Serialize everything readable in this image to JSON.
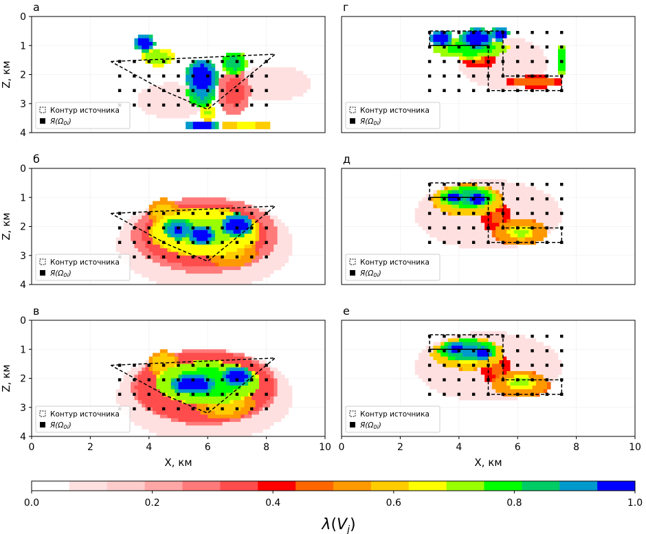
{
  "chart_data": {
    "type": "heatmap",
    "title": "",
    "layout": "3 rows x 2 columns of panels with shared horizontal colorbar",
    "colorbar": {
      "label": "λ(V_j)",
      "label_main": "λ",
      "label_paren_open": "(",
      "label_var": "V",
      "label_sub": "j",
      "label_paren_close": ")",
      "range": [
        0.0,
        1.0
      ],
      "ticks": [
        0.0,
        0.2,
        0.4,
        0.6,
        0.8,
        1.0
      ],
      "tick_labels": [
        "0.0",
        "0.2",
        "0.4",
        "0.6",
        "0.8",
        "1.0"
      ],
      "n_bins": 16,
      "colors": [
        "#ffffff",
        "#ffe0e0",
        "#ffcccc",
        "#ffa6a6",
        "#ff7a7a",
        "#ff4c4c",
        "#ff0000",
        "#ff6600",
        "#ff9900",
        "#ffcc00",
        "#ffff00",
        "#99ff00",
        "#00ff00",
        "#00cc66",
        "#0099cc",
        "#0000ff"
      ]
    },
    "axes": {
      "xlabel": "X, км",
      "ylabel": "Z, км",
      "xlim": [
        0,
        10
      ],
      "ylim": [
        4,
        0
      ],
      "xticks": [
        0,
        2,
        4,
        6,
        8,
        10
      ],
      "xtick_labels": [
        "0",
        "2",
        "4",
        "6",
        "8",
        "10"
      ],
      "yticks": [
        0,
        1,
        2,
        3,
        4
      ],
      "ytick_labels": [
        "0",
        "1",
        "2",
        "3",
        "4"
      ],
      "grid": true
    },
    "legend": {
      "placement": "lower-left",
      "entries": [
        {
          "label": "Контур источника",
          "marker": "dashed-square"
        },
        {
          "label_main": "Я",
          "label_open": "(",
          "label_omega": "Ω",
          "label_sub": "0i",
          "label_close": ")",
          "label": "Я(Ω0i)",
          "marker": "filled-square"
        }
      ]
    },
    "panels": [
      {
        "id": "a",
        "label": "а",
        "row": 0,
        "col": 0,
        "source_contour": [
          [
            2.7,
            1.55
          ],
          [
            8.3,
            1.3
          ],
          [
            6.0,
            3.2
          ],
          [
            4.6,
            2.6
          ],
          [
            2.7,
            1.55
          ]
        ],
        "grid_points": {
          "x": [
            3.0,
            3.5,
            4.0,
            4.5,
            5.0,
            5.5,
            6.0,
            6.5,
            7.0,
            7.5,
            8.0
          ],
          "z": [
            1.55,
            2.05,
            2.55,
            3.05
          ]
        },
        "blobs": [
          {
            "x": 3.85,
            "z": 0.9,
            "rx": 0.35,
            "rz": 0.3,
            "v": 1.0
          },
          {
            "x": 4.3,
            "z": 1.4,
            "rx": 0.55,
            "rz": 0.3,
            "v": 0.75
          },
          {
            "x": 5.8,
            "z": 2.1,
            "rx": 0.55,
            "rz": 0.65,
            "v": 1.0
          },
          {
            "x": 5.8,
            "z": 2.6,
            "rx": 0.5,
            "rz": 0.5,
            "v": 0.9
          },
          {
            "x": 6.0,
            "z": 3.3,
            "rx": 0.3,
            "rz": 0.3,
            "v": 0.7
          },
          {
            "x": 5.8,
            "z": 3.75,
            "rx": 0.6,
            "rz": 0.18,
            "v": 1.0
          },
          {
            "x": 7.3,
            "z": 3.75,
            "rx": 0.9,
            "rz": 0.18,
            "v": 0.65
          },
          {
            "x": 6.9,
            "z": 1.6,
            "rx": 0.45,
            "rz": 0.4,
            "v": 0.85
          },
          {
            "x": 6.9,
            "z": 2.6,
            "rx": 0.55,
            "rz": 0.8,
            "v": 0.33
          },
          {
            "x": 8.2,
            "z": 2.3,
            "rx": 1.3,
            "rz": 0.6,
            "v": 0.12
          },
          {
            "x": 4.8,
            "z": 2.9,
            "rx": 1.2,
            "rz": 0.6,
            "v": 0.1
          }
        ]
      },
      {
        "id": "b",
        "label": "б",
        "row": 1,
        "col": 0,
        "source_contour": [
          [
            2.7,
            1.55
          ],
          [
            8.3,
            1.3
          ],
          [
            6.0,
            3.2
          ],
          [
            4.6,
            2.6
          ],
          [
            2.7,
            1.55
          ]
        ],
        "grid_points": {
          "x": [
            3.0,
            3.5,
            4.0,
            4.5,
            5.0,
            5.5,
            6.0,
            6.5,
            7.0,
            7.5,
            8.0
          ],
          "z": [
            1.55,
            2.05,
            2.55,
            3.05
          ]
        },
        "blobs": [
          {
            "x": 5.0,
            "z": 2.1,
            "rx": 0.55,
            "rz": 0.35,
            "v": 0.95
          },
          {
            "x": 5.8,
            "z": 2.3,
            "rx": 0.45,
            "rz": 0.35,
            "v": 1.0
          },
          {
            "x": 7.0,
            "z": 1.95,
            "rx": 0.55,
            "rz": 0.4,
            "v": 1.0
          },
          {
            "x": 5.9,
            "z": 2.2,
            "rx": 1.9,
            "rz": 0.85,
            "v": 0.72
          },
          {
            "x": 4.5,
            "z": 1.5,
            "rx": 0.5,
            "rz": 0.45,
            "v": 0.6
          },
          {
            "x": 6.8,
            "z": 2.9,
            "rx": 0.9,
            "rz": 0.5,
            "v": 0.58
          },
          {
            "x": 5.9,
            "z": 2.3,
            "rx": 2.5,
            "rz": 1.3,
            "v": 0.35
          },
          {
            "x": 5.9,
            "z": 2.6,
            "rx": 3.0,
            "rz": 1.6,
            "v": 0.1
          }
        ]
      },
      {
        "id": "v",
        "label": "в",
        "row": 2,
        "col": 0,
        "source_contour": [
          [
            2.7,
            1.55
          ],
          [
            8.3,
            1.3
          ],
          [
            6.0,
            3.2
          ],
          [
            4.6,
            2.6
          ],
          [
            2.7,
            1.55
          ]
        ],
        "grid_points": {
          "x": [
            3.0,
            3.5,
            4.0,
            4.5,
            5.0,
            5.5,
            6.0,
            6.5,
            7.0,
            7.5,
            8.0
          ],
          "z": [
            1.55,
            2.05,
            2.55,
            3.05
          ]
        },
        "blobs": [
          {
            "x": 5.5,
            "z": 2.2,
            "rx": 0.8,
            "rz": 0.35,
            "v": 1.0
          },
          {
            "x": 7.0,
            "z": 1.95,
            "rx": 0.5,
            "rz": 0.35,
            "v": 1.0
          },
          {
            "x": 6.0,
            "z": 2.15,
            "rx": 1.8,
            "rz": 0.75,
            "v": 0.8
          },
          {
            "x": 4.5,
            "z": 1.5,
            "rx": 0.5,
            "rz": 0.45,
            "v": 0.62
          },
          {
            "x": 6.6,
            "z": 2.9,
            "rx": 1.0,
            "rz": 0.5,
            "v": 0.6
          },
          {
            "x": 5.9,
            "z": 2.3,
            "rx": 2.5,
            "rz": 1.3,
            "v": 0.36
          },
          {
            "x": 5.9,
            "z": 2.6,
            "rx": 3.0,
            "rz": 1.6,
            "v": 0.1
          }
        ]
      },
      {
        "id": "g",
        "label": "г",
        "row": 0,
        "col": 1,
        "source_contour_rects": [
          [
            3.0,
            0.5,
            5.5,
            1.0
          ],
          [
            5.0,
            1.0,
            5.5,
            2.55
          ],
          [
            5.5,
            2.05,
            7.5,
            2.55
          ],
          [
            5.0,
            2.55,
            7.5,
            2.55
          ]
        ],
        "source_contour": [
          [
            3.0,
            0.5
          ],
          [
            5.5,
            0.5
          ],
          [
            5.5,
            2.05
          ],
          [
            7.5,
            2.05
          ],
          [
            7.5,
            2.55
          ],
          [
            5.0,
            2.55
          ],
          [
            5.0,
            1.0
          ],
          [
            3.0,
            1.0
          ],
          [
            3.0,
            0.5
          ]
        ],
        "grid_points": {
          "x": [
            3.0,
            3.5,
            4.0,
            4.5,
            5.0,
            5.5,
            6.0,
            6.5,
            7.0,
            7.5
          ],
          "z": [
            0.55,
            1.05,
            1.55,
            2.05,
            2.55
          ]
        },
        "blobs": [
          {
            "x": 3.4,
            "z": 0.75,
            "rx": 0.4,
            "rz": 0.3,
            "v": 1.0
          },
          {
            "x": 4.6,
            "z": 0.75,
            "rx": 0.55,
            "rz": 0.35,
            "v": 1.0
          },
          {
            "x": 5.4,
            "z": 0.6,
            "rx": 0.3,
            "rz": 0.25,
            "v": 1.0
          },
          {
            "x": 4.4,
            "z": 1.1,
            "rx": 1.3,
            "rz": 0.35,
            "v": 0.8
          },
          {
            "x": 4.7,
            "z": 1.5,
            "rx": 0.6,
            "rz": 0.3,
            "v": 0.45
          },
          {
            "x": 6.6,
            "z": 2.25,
            "rx": 1.0,
            "rz": 0.2,
            "v": 0.48
          },
          {
            "x": 7.5,
            "z": 1.5,
            "rx": 0.15,
            "rz": 0.55,
            "v": 0.82
          },
          {
            "x": 5.5,
            "z": 1.6,
            "rx": 1.5,
            "rz": 0.9,
            "v": 0.12
          }
        ]
      },
      {
        "id": "d",
        "label": "д",
        "row": 1,
        "col": 1,
        "source_contour": [
          [
            3.0,
            0.5
          ],
          [
            5.5,
            0.5
          ],
          [
            5.5,
            2.05
          ],
          [
            7.5,
            2.05
          ],
          [
            7.5,
            2.55
          ],
          [
            5.0,
            2.55
          ],
          [
            5.0,
            1.0
          ],
          [
            3.0,
            1.0
          ],
          [
            3.0,
            0.5
          ]
        ],
        "grid_points": {
          "x": [
            3.0,
            3.5,
            4.0,
            4.5,
            5.0,
            5.5,
            6.0,
            6.5,
            7.0,
            7.5
          ],
          "z": [
            0.55,
            1.05,
            1.55,
            2.05,
            2.55
          ]
        },
        "blobs": [
          {
            "x": 3.85,
            "z": 1.0,
            "rx": 0.3,
            "rz": 0.2,
            "v": 1.0
          },
          {
            "x": 4.6,
            "z": 1.05,
            "rx": 0.35,
            "rz": 0.25,
            "v": 1.0
          },
          {
            "x": 4.3,
            "z": 1.0,
            "rx": 1.0,
            "rz": 0.38,
            "v": 0.85
          },
          {
            "x": 4.3,
            "z": 1.1,
            "rx": 1.25,
            "rz": 0.55,
            "v": 0.65
          },
          {
            "x": 6.1,
            "z": 2.2,
            "rx": 0.45,
            "rz": 0.25,
            "v": 0.72
          },
          {
            "x": 6.1,
            "z": 2.2,
            "rx": 0.95,
            "rz": 0.45,
            "v": 0.58
          },
          {
            "x": 5.3,
            "z": 1.7,
            "rx": 0.5,
            "rz": 0.55,
            "v": 0.45
          },
          {
            "x": 5.0,
            "z": 1.6,
            "rx": 2.5,
            "rz": 1.2,
            "v": 0.12
          }
        ]
      },
      {
        "id": "e",
        "label": "е",
        "row": 2,
        "col": 1,
        "source_contour": [
          [
            3.0,
            0.5
          ],
          [
            5.5,
            0.5
          ],
          [
            5.5,
            2.05
          ],
          [
            7.5,
            2.05
          ],
          [
            7.5,
            2.55
          ],
          [
            5.0,
            2.55
          ],
          [
            5.0,
            1.0
          ],
          [
            3.0,
            1.0
          ],
          [
            3.0,
            0.5
          ]
        ],
        "grid_points": {
          "x": [
            3.0,
            3.5,
            4.0,
            4.5,
            5.0,
            5.5,
            6.0,
            6.5,
            7.0,
            7.5
          ],
          "z": [
            0.55,
            1.05,
            1.55,
            2.05,
            2.55
          ]
        },
        "blobs": [
          {
            "x": 3.9,
            "z": 0.95,
            "rx": 0.3,
            "rz": 0.2,
            "v": 1.0
          },
          {
            "x": 4.8,
            "z": 1.15,
            "rx": 0.3,
            "rz": 0.25,
            "v": 1.0
          },
          {
            "x": 4.3,
            "z": 1.05,
            "rx": 1.0,
            "rz": 0.38,
            "v": 0.9
          },
          {
            "x": 4.3,
            "z": 1.15,
            "rx": 1.25,
            "rz": 0.55,
            "v": 0.66
          },
          {
            "x": 6.1,
            "z": 2.15,
            "rx": 0.5,
            "rz": 0.25,
            "v": 0.73
          },
          {
            "x": 6.1,
            "z": 2.2,
            "rx": 1.0,
            "rz": 0.45,
            "v": 0.58
          },
          {
            "x": 5.3,
            "z": 1.7,
            "rx": 0.5,
            "rz": 0.55,
            "v": 0.45
          },
          {
            "x": 5.0,
            "z": 1.6,
            "rx": 2.5,
            "rz": 1.2,
            "v": 0.12
          }
        ]
      }
    ]
  }
}
